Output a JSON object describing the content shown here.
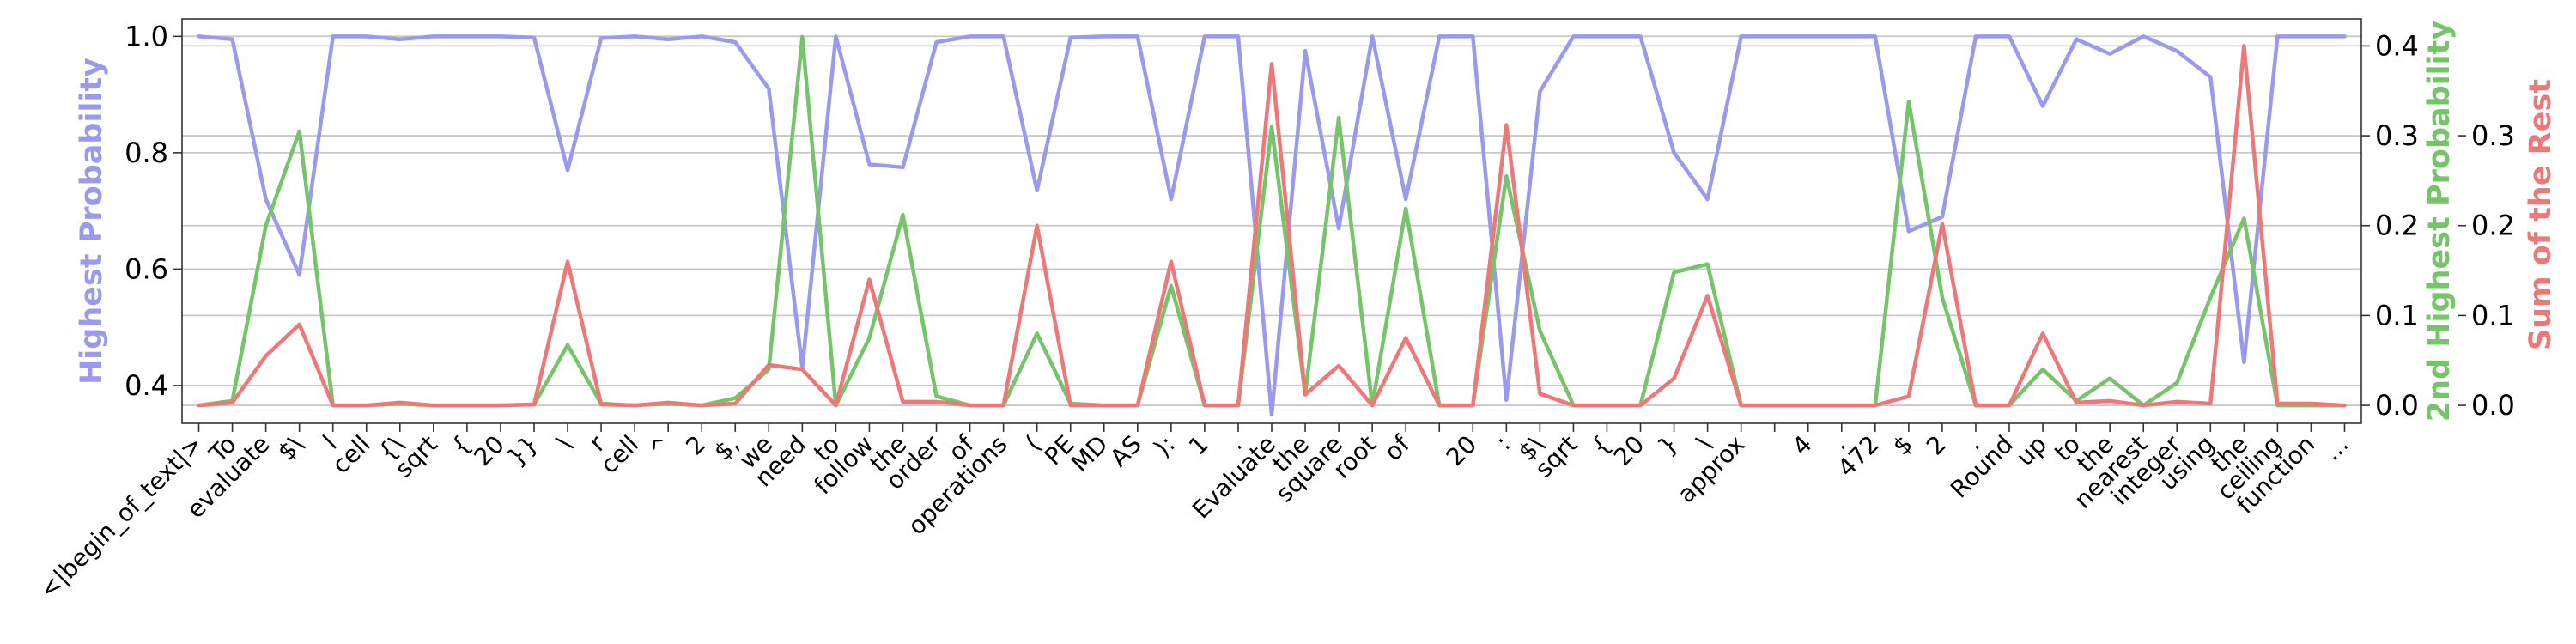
{
  "chart_data": {
    "type": "line",
    "tokens": [
      "<|begin_of_text|>",
      "To",
      "evaluate",
      "$\\",
      "l",
      "cell",
      "{\\",
      "sqrt",
      "{",
      "20",
      "}}",
      "\\",
      "r",
      "cell",
      "^",
      "2",
      "$,",
      "we",
      "need",
      "to",
      "follow",
      "the",
      "order",
      "of",
      "operations",
      "(",
      "PE",
      "MD",
      "AS",
      "):",
      "1",
      ".",
      "Evaluate",
      "the",
      "square",
      "root",
      "of",
      "",
      "20",
      ":",
      "$\\",
      "sqrt",
      "{",
      "20",
      "}",
      "\\",
      "approx",
      "",
      "4",
      ".",
      "472",
      "$",
      "2",
      ".",
      "Round",
      "up",
      "to",
      "the",
      "nearest",
      "integer",
      "using",
      "the",
      "ceiling",
      "function",
      "..."
    ],
    "series": [
      {
        "name": "Highest Probability",
        "axis": "left",
        "color": "#9999ee",
        "values": [
          1.0,
          0.995,
          0.72,
          0.59,
          1.0,
          1.0,
          0.995,
          1.0,
          1.0,
          1.0,
          0.998,
          0.77,
          0.997,
          1.0,
          0.995,
          1.0,
          0.99,
          0.91,
          0.43,
          1.0,
          0.78,
          0.775,
          0.99,
          1.0,
          1.0,
          0.735,
          0.998,
          1.0,
          1.0,
          0.72,
          1.0,
          1.0,
          0.35,
          0.975,
          0.67,
          1.0,
          0.72,
          1.0,
          1.0,
          0.375,
          0.905,
          1.0,
          1.0,
          1.0,
          0.8,
          0.72,
          1.0,
          1.0,
          1.0,
          1.0,
          1.0,
          0.665,
          0.69,
          1.0,
          1.0,
          0.88,
          0.995,
          0.97,
          1.0,
          0.975,
          0.93,
          0.44,
          1.0,
          1.0,
          1.0
        ]
      },
      {
        "name": "2nd Highest Probability",
        "axis": "right1",
        "color": "#76c46a",
        "values": [
          0.0,
          0.005,
          0.2,
          0.305,
          0.0,
          0.0,
          0.002,
          0.0,
          0.0,
          0.0,
          0.001,
          0.067,
          0.002,
          0.0,
          0.002,
          0.0,
          0.008,
          0.04,
          0.41,
          0.0,
          0.075,
          0.212,
          0.01,
          0.0,
          0.0,
          0.08,
          0.002,
          0.0,
          0.0,
          0.133,
          0.0,
          0.0,
          0.31,
          0.012,
          0.32,
          0.0,
          0.219,
          0.0,
          0.0,
          0.255,
          0.083,
          0.0,
          0.0,
          0.0,
          0.148,
          0.157,
          0.0,
          0.0,
          0.0,
          0.0,
          0.0,
          0.338,
          0.12,
          0.0,
          0.0,
          0.04,
          0.005,
          0.03,
          0.0,
          0.025,
          0.12,
          0.208,
          0.0,
          0.0,
          0.0
        ]
      },
      {
        "name": "Sum of the Rest",
        "axis": "right2",
        "color": "#ee7777",
        "values": [
          0.0,
          0.003,
          0.055,
          0.09,
          0.0,
          0.0,
          0.003,
          0.0,
          0.0,
          0.0,
          0.001,
          0.16,
          0.001,
          0.0,
          0.003,
          0.0,
          0.002,
          0.045,
          0.04,
          0.0,
          0.14,
          0.004,
          0.004,
          0.0,
          0.0,
          0.2,
          0.0,
          0.0,
          0.0,
          0.16,
          0.0,
          0.0,
          0.38,
          0.012,
          0.044,
          0.0,
          0.075,
          0.0,
          0.0,
          0.312,
          0.013,
          0.0,
          0.0,
          0.0,
          0.03,
          0.122,
          0.0,
          0.0,
          0.0,
          0.0,
          0.0,
          0.01,
          0.202,
          0.0,
          0.0,
          0.08,
          0.003,
          0.005,
          0.0,
          0.004,
          0.002,
          0.4,
          0.002,
          0.002,
          0.0
        ]
      }
    ],
    "axes": {
      "left": {
        "label": "Highest Probability",
        "color": "#9999ee",
        "ylim": [
          0.335,
          1.03
        ],
        "ticks": [
          0.4,
          0.6,
          0.8,
          1.0
        ],
        "tick_labels": [
          "0.4",
          "0.6",
          "0.8",
          "1.0"
        ]
      },
      "right1": {
        "label": "2nd Highest Probability",
        "color": "#76c46a",
        "ylim": [
          -0.02,
          0.43
        ],
        "ticks": [
          0.0,
          0.1,
          0.2,
          0.3,
          0.4
        ],
        "tick_labels": [
          "0.0",
          "0.1",
          "0.2",
          "0.3",
          "0.4"
        ]
      },
      "right2": {
        "label": "Sum of the Rest",
        "color": "#ee7777",
        "ylim": [
          -0.02,
          0.43
        ],
        "ticks": [
          0.0,
          0.1,
          0.2,
          0.3
        ],
        "tick_labels": [
          "0.0",
          "0.1",
          "0.2",
          "0.3"
        ]
      }
    },
    "grid": true
  }
}
